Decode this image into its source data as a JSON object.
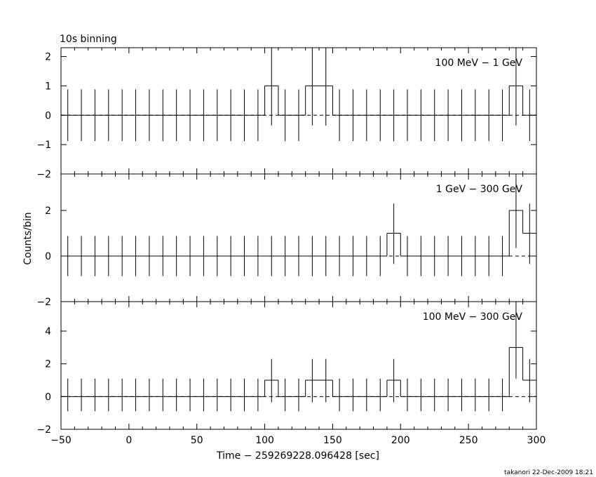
{
  "figure": {
    "binning_label": "10s binning",
    "ylabel": "Counts/bin",
    "xlabel": "Time − 259269228.096428 [sec]",
    "footer": "takanori 22-Dec-2009 18:21",
    "xlim": [
      -50,
      300
    ],
    "x_ticks": [
      "−50",
      "0",
      "50",
      "100",
      "150",
      "200",
      "250",
      "300"
    ]
  },
  "chart_data": [
    {
      "type": "histogram",
      "title": "100 MeV − 1 GeV",
      "ylim": [
        -2,
        2.3
      ],
      "y_ticks": [
        "2",
        "1",
        "0",
        "−1",
        "−2"
      ],
      "y_tick_values": [
        2,
        1,
        0,
        -1,
        -2
      ],
      "bin_width": 10,
      "bins_x": [
        -45,
        -35,
        -25,
        -15,
        -5,
        5,
        15,
        25,
        35,
        45,
        55,
        65,
        75,
        85,
        95,
        105,
        115,
        125,
        135,
        145,
        155,
        165,
        175,
        185,
        195,
        205,
        215,
        225,
        235,
        245,
        255,
        265,
        275,
        285,
        295
      ],
      "counts": [
        0,
        0,
        0,
        0,
        0,
        0,
        0,
        0,
        0,
        0,
        0,
        0,
        0,
        0,
        0,
        1,
        0,
        0,
        1,
        1,
        0,
        0,
        0,
        0,
        0,
        0,
        0,
        0,
        0,
        0,
        0,
        0,
        0,
        1,
        0
      ],
      "error_hi": [
        0.88,
        0.88,
        0.88,
        0.88,
        0.88,
        0.88,
        0.88,
        0.88,
        0.88,
        0.88,
        0.88,
        0.88,
        0.88,
        0.88,
        0.88,
        2.3,
        0.88,
        0.88,
        2.3,
        2.3,
        0.88,
        0.88,
        0.88,
        0.88,
        0.88,
        0.88,
        0.88,
        0.88,
        0.88,
        0.88,
        0.88,
        0.88,
        0.88,
        2.3,
        0.88
      ],
      "error_lo": [
        -0.88,
        -0.88,
        -0.88,
        -0.88,
        -0.88,
        -0.88,
        -0.88,
        -0.88,
        -0.88,
        -0.88,
        -0.88,
        -0.88,
        -0.88,
        -0.88,
        -0.88,
        -0.35,
        -0.88,
        -0.88,
        -0.35,
        -0.35,
        -0.88,
        -0.88,
        -0.88,
        -0.88,
        -0.88,
        -0.88,
        -0.88,
        -0.88,
        -0.88,
        -0.88,
        -0.88,
        -0.88,
        -0.88,
        -0.35,
        -0.88
      ],
      "expected_level": 0
    },
    {
      "type": "histogram",
      "title": "1 GeV − 300 GeV",
      "ylim": [
        -2,
        3.6
      ],
      "y_ticks": [
        "2",
        "0",
        "−2"
      ],
      "y_tick_values": [
        2,
        0,
        -2
      ],
      "bin_width": 10,
      "bins_x": [
        -45,
        -35,
        -25,
        -15,
        -5,
        5,
        15,
        25,
        35,
        45,
        55,
        65,
        75,
        85,
        95,
        105,
        115,
        125,
        135,
        145,
        155,
        165,
        175,
        185,
        195,
        205,
        215,
        225,
        235,
        245,
        255,
        265,
        275,
        285,
        295
      ],
      "counts": [
        0,
        0,
        0,
        0,
        0,
        0,
        0,
        0,
        0,
        0,
        0,
        0,
        0,
        0,
        0,
        0,
        0,
        0,
        0,
        0,
        0,
        0,
        0,
        0,
        1,
        0,
        0,
        0,
        0,
        0,
        0,
        0,
        0,
        2,
        1
      ],
      "error_hi": [
        0.88,
        0.88,
        0.88,
        0.88,
        0.88,
        0.88,
        0.88,
        0.88,
        0.88,
        0.88,
        0.88,
        0.88,
        0.88,
        0.88,
        0.88,
        0.88,
        0.88,
        0.88,
        0.88,
        0.88,
        0.88,
        0.88,
        0.88,
        0.88,
        2.3,
        0.88,
        0.88,
        0.88,
        0.88,
        0.88,
        0.88,
        0.88,
        0.88,
        3.6,
        2.3
      ],
      "error_lo": [
        -0.88,
        -0.88,
        -0.88,
        -0.88,
        -0.88,
        -0.88,
        -0.88,
        -0.88,
        -0.88,
        -0.88,
        -0.88,
        -0.88,
        -0.88,
        -0.88,
        -0.88,
        -0.88,
        -0.88,
        -0.88,
        -0.88,
        -0.88,
        -0.88,
        -0.88,
        -0.88,
        -0.88,
        -0.35,
        -0.88,
        -0.88,
        -0.88,
        -0.88,
        -0.88,
        -0.88,
        -0.88,
        -0.88,
        0.35,
        -0.35
      ],
      "expected_level": 0
    },
    {
      "type": "histogram",
      "title": "100 MeV − 300 GeV",
      "ylim": [
        -2,
        5.8
      ],
      "y_ticks": [
        "4",
        "2",
        "0",
        "−2"
      ],
      "y_tick_values": [
        4,
        2,
        0,
        -2
      ],
      "bin_width": 10,
      "bins_x": [
        -45,
        -35,
        -25,
        -15,
        -5,
        5,
        15,
        25,
        35,
        45,
        55,
        65,
        75,
        85,
        95,
        105,
        115,
        125,
        135,
        145,
        155,
        165,
        175,
        185,
        195,
        205,
        215,
        225,
        235,
        245,
        255,
        265,
        275,
        285,
        295
      ],
      "counts": [
        0,
        0,
        0,
        0,
        0,
        0,
        0,
        0,
        0,
        0,
        0,
        0,
        0,
        0,
        0,
        1,
        0,
        0,
        1,
        1,
        0,
        0,
        0,
        0,
        1,
        0,
        0,
        0,
        0,
        0,
        0,
        0,
        0,
        3,
        1
      ],
      "error_hi": [
        1.1,
        1.1,
        1.1,
        1.1,
        1.1,
        1.1,
        1.1,
        1.1,
        1.1,
        1.1,
        1.1,
        1.1,
        1.1,
        1.1,
        1.1,
        2.3,
        1.1,
        1.1,
        2.3,
        2.3,
        1.1,
        1.1,
        1.1,
        1.1,
        2.3,
        1.1,
        1.1,
        1.1,
        1.1,
        1.1,
        1.1,
        1.1,
        1.1,
        5.8,
        2.3
      ],
      "error_lo": [
        -0.9,
        -0.9,
        -0.9,
        -0.9,
        -0.9,
        -0.9,
        -0.9,
        -0.9,
        -0.9,
        -0.9,
        -0.9,
        -0.9,
        -0.9,
        -0.9,
        -0.9,
        -0.35,
        -0.9,
        -0.9,
        -0.35,
        -0.35,
        -0.9,
        -0.9,
        -0.9,
        -0.9,
        -0.35,
        -0.9,
        -0.9,
        -0.9,
        -0.9,
        -0.9,
        -0.9,
        -0.9,
        -0.9,
        1.1,
        -0.35
      ],
      "expected_level": 0
    }
  ]
}
